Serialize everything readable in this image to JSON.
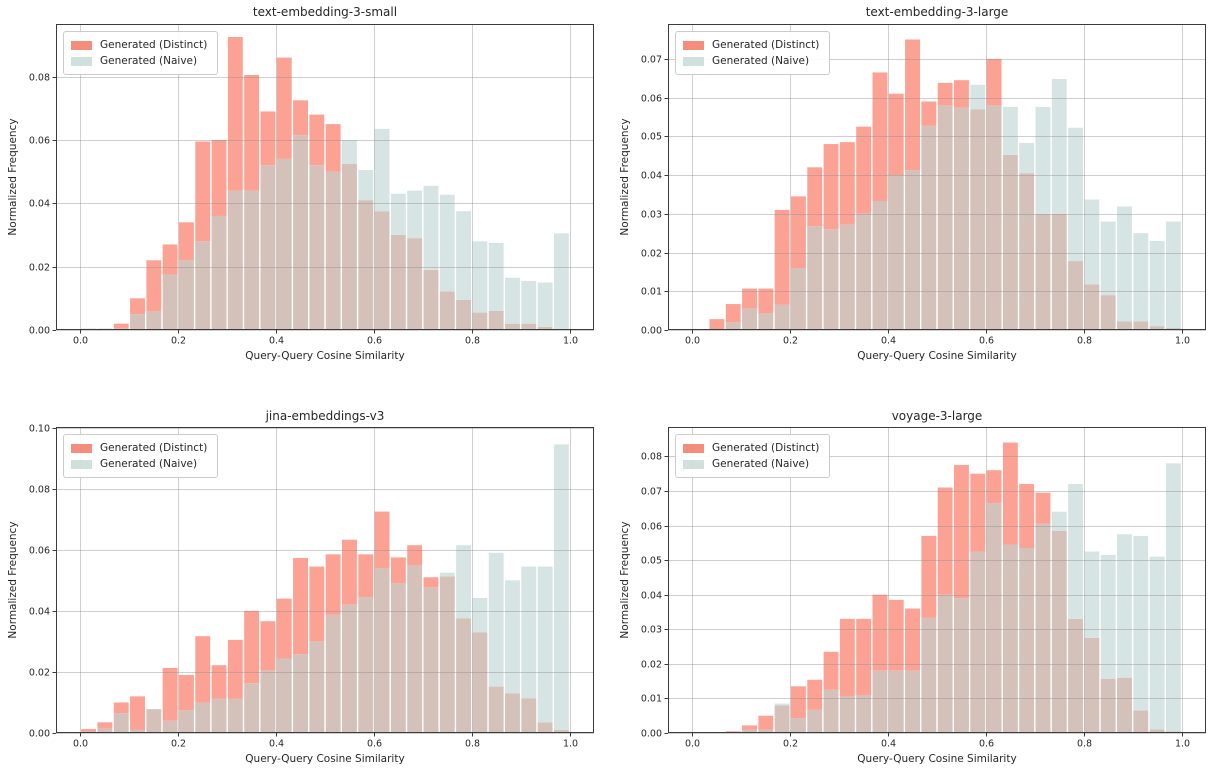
{
  "figure": {
    "background": "#ffffff",
    "colors": {
      "distinct_bar": "#FCA294",
      "naive_bar": "#D6E5E3",
      "overlap_bar": "#D3C1BA",
      "legend_distinct_swatch": "#F48D7C",
      "legend_naive_swatch": "#CFE0DD",
      "grid": "#8c8c8c",
      "spine": "#3b3b3b",
      "text": "#262626"
    },
    "xtick_labels": [
      "0.0",
      "0.2",
      "0.4",
      "0.6",
      "0.8",
      "1.0"
    ]
  },
  "chart_data": [
    {
      "type": "bar",
      "subtype": "overlaid-histogram",
      "title": "text-embedding-3-small",
      "xlabel": "Query-Query Cosine Similarity",
      "ylabel": "Normalized Frequency",
      "grid": true,
      "legend_position": "upper left",
      "bin_start": 0.0,
      "bin_width": 0.033333,
      "xlim": [
        -0.05,
        1.05
      ],
      "ylim": [
        0,
        0.0966
      ],
      "xticks": [
        "0.0",
        "0.2",
        "0.4",
        "0.6",
        "0.8",
        "1.0"
      ],
      "yticks": [
        "0.00",
        "0.02",
        "0.04",
        "0.06",
        "0.08"
      ],
      "series": [
        {
          "name": "Generated (Distinct)",
          "values": [
            0,
            0,
            0.002,
            0.01,
            0.022,
            0.027,
            0.034,
            0.0595,
            0.06,
            0.0925,
            0.0805,
            0.069,
            0.086,
            0.0725,
            0.068,
            0.065,
            0.0525,
            0.041,
            0.0375,
            0.03,
            0.029,
            0.019,
            0.0122,
            0.0095,
            0.0055,
            0.006,
            0.002,
            0.002,
            0.001,
            0
          ]
        },
        {
          "name": "Generated (Naive)",
          "values": [
            0.0005,
            0.0005,
            0.0005,
            0.005,
            0.006,
            0.0175,
            0.022,
            0.028,
            0.036,
            0.044,
            0.044,
            0.052,
            0.054,
            0.0615,
            0.052,
            0.05,
            0.06,
            0.0505,
            0.0635,
            0.043,
            0.044,
            0.0455,
            0.0427,
            0.0375,
            0.028,
            0.0275,
            0.0165,
            0.0155,
            0.015,
            0.0305
          ]
        }
      ]
    },
    {
      "type": "bar",
      "subtype": "overlaid-histogram",
      "title": "text-embedding-3-large",
      "xlabel": "Query-Query Cosine Similarity",
      "ylabel": "Normalized Frequency",
      "grid": true,
      "legend_position": "upper left",
      "bin_start": 0.0,
      "bin_width": 0.033333,
      "xlim": [
        -0.05,
        1.05
      ],
      "ylim": [
        0,
        0.079
      ],
      "xticks": [
        "0.0",
        "0.2",
        "0.4",
        "0.6",
        "0.8",
        "1.0"
      ],
      "yticks": [
        "0.00",
        "0.01",
        "0.02",
        "0.03",
        "0.04",
        "0.05",
        "0.06",
        "0.07"
      ],
      "series": [
        {
          "name": "Generated (Distinct)",
          "values": [
            0,
            0.0028,
            0.0067,
            0.0107,
            0.0107,
            0.031,
            0.0345,
            0.042,
            0.048,
            0.0485,
            0.0525,
            0.0665,
            0.061,
            0.075,
            0.059,
            0.0638,
            0.0645,
            0.057,
            0.07,
            0.0452,
            0.0405,
            0.03,
            0.03,
            0.0178,
            0.0118,
            0.009,
            0.0022,
            0.0022,
            0.001,
            0.0005
          ]
        },
        {
          "name": "Generated (Naive)",
          "values": [
            0,
            0,
            0.002,
            0.0055,
            0.0043,
            0.0065,
            0.016,
            0.0268,
            0.026,
            0.0272,
            0.03,
            0.0333,
            0.04,
            0.0413,
            0.0527,
            0.058,
            0.0574,
            0.0633,
            0.058,
            0.0576,
            0.0483,
            0.0576,
            0.0648,
            0.0522,
            0.0337,
            0.028,
            0.0319,
            0.025,
            0.023,
            0.028
          ]
        }
      ]
    },
    {
      "type": "bar",
      "subtype": "overlaid-histogram",
      "title": "jina-embeddings-v3",
      "xlabel": "Query-Query Cosine Similarity",
      "ylabel": "Normalized Frequency",
      "grid": true,
      "legend_position": "upper left",
      "bin_start": 0.0,
      "bin_width": 0.033333,
      "xlim": [
        -0.05,
        1.05
      ],
      "ylim": [
        0,
        0.1002
      ],
      "xticks": [
        "0.0",
        "0.2",
        "0.4",
        "0.6",
        "0.8",
        "1.0"
      ],
      "yticks": [
        "0.00",
        "0.02",
        "0.04",
        "0.06",
        "0.08",
        "0.10"
      ],
      "series": [
        {
          "name": "Generated (Distinct)",
          "values": [
            0.0013,
            0.0035,
            0.01,
            0.012,
            0.0078,
            0.0213,
            0.019,
            0.0317,
            0.0222,
            0.0305,
            0.04,
            0.0366,
            0.044,
            0.0573,
            0.0545,
            0.0585,
            0.0633,
            0.0585,
            0.0725,
            0.0575,
            0.0615,
            0.051,
            0.0513,
            0.0375,
            0.033,
            0.0152,
            0.013,
            0.0114,
            0.0035,
            0.001
          ]
        },
        {
          "name": "Generated (Naive)",
          "values": [
            0.0005,
            0.0015,
            0.0065,
            0.001,
            0.0078,
            0.004,
            0.0075,
            0.01,
            0.0113,
            0.0113,
            0.0163,
            0.0205,
            0.0244,
            0.0258,
            0.03,
            0.0387,
            0.042,
            0.0445,
            0.054,
            0.049,
            0.055,
            0.0477,
            0.0525,
            0.0615,
            0.0442,
            0.059,
            0.05,
            0.0545,
            0.0545,
            0.0945
          ]
        }
      ]
    },
    {
      "type": "bar",
      "subtype": "overlaid-histogram",
      "title": "voyage-3-large",
      "xlabel": "Query-Query Cosine Similarity",
      "ylabel": "Normalized Frequency",
      "grid": true,
      "legend_position": "upper left",
      "bin_start": 0.0,
      "bin_width": 0.033333,
      "xlim": [
        -0.05,
        1.05
      ],
      "ylim": [
        0,
        0.0885
      ],
      "xticks": [
        "0.0",
        "0.2",
        "0.4",
        "0.6",
        "0.8",
        "1.0"
      ],
      "yticks": [
        "0.00",
        "0.01",
        "0.02",
        "0.03",
        "0.04",
        "0.05",
        "0.06",
        "0.07",
        "0.08"
      ],
      "series": [
        {
          "name": "Generated (Distinct)",
          "values": [
            0,
            0,
            0.0005,
            0.0022,
            0.005,
            0.008,
            0.0135,
            0.0154,
            0.0235,
            0.033,
            0.033,
            0.04,
            0.0385,
            0.036,
            0.057,
            0.071,
            0.0775,
            0.075,
            0.076,
            0.084,
            0.072,
            0.0695,
            0.0585,
            0.033,
            0.0275,
            0.0157,
            0.016,
            0.0065,
            0.001,
            0.0005
          ]
        },
        {
          "name": "Generated (Naive)",
          "values": [
            0,
            0,
            0,
            0.001,
            0.001,
            0.0085,
            0.0043,
            0.0067,
            0.0125,
            0.0105,
            0.011,
            0.018,
            0.018,
            0.018,
            0.0333,
            0.04,
            0.039,
            0.0525,
            0.0665,
            0.0545,
            0.0535,
            0.0605,
            0.064,
            0.072,
            0.0525,
            0.0515,
            0.0575,
            0.057,
            0.051,
            0.078
          ]
        }
      ]
    }
  ]
}
